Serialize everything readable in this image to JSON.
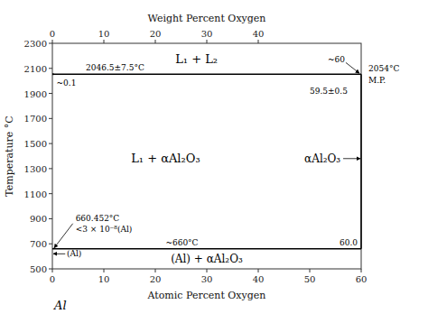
{
  "chart_data": {
    "type": "line",
    "xlabel": "Atomic Percent Oxygen",
    "x2label": "Weight Percent Oxygen",
    "ylabel": "Temperature °C",
    "xlim": [
      0,
      60
    ],
    "ylim": [
      500,
      2300
    ],
    "xticks": [
      0,
      10,
      20,
      30,
      40,
      50,
      60
    ],
    "x2lim": [
      0,
      60
    ],
    "x2ticks": [
      0,
      10,
      20,
      30,
      40
    ],
    "yticks": [
      500,
      700,
      900,
      1100,
      1300,
      1500,
      1700,
      1900,
      2100,
      2300
    ],
    "grid": false,
    "series": [
      {
        "x": [
          0,
          60
        ],
        "values": [
          2054,
          2054
        ],
        "color": "#000000"
      },
      {
        "x": [
          0,
          60
        ],
        "values": [
          660,
          660
        ],
        "color": "#000000"
      },
      {
        "x": [
          60,
          60
        ],
        "values": [
          660,
          2054
        ],
        "color": "#000000"
      },
      {
        "x": [
          0.15,
          0.15
        ],
        "values": [
          2046,
          2062
        ],
        "color": "#000000"
      }
    ],
    "phase_labels": [
      "L₁ + L₂",
      "L₁ + αAl₂O₃",
      "αAl₂O₃",
      "(Al) + αAl₂O₃"
    ],
    "annotations": [
      "2046.5±7.5°C",
      "~0.1",
      "~60",
      "2054°C",
      "M.P.",
      "59.5±0.5",
      "660.452°C",
      "<3 × 10⁻⁸(Al)",
      "~660°C",
      "60.0",
      "(Al)",
      "Al"
    ]
  }
}
